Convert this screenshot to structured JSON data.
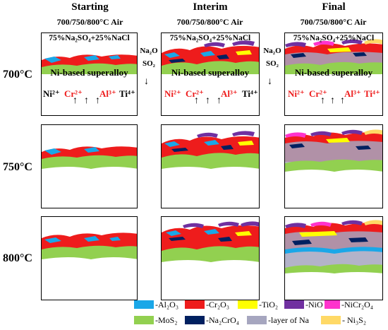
{
  "columns": [
    {
      "title": "Starting",
      "sub": "700/750/800°C Air"
    },
    {
      "title": "Interim",
      "sub": "700/750/800°C Air"
    },
    {
      "title": "Final",
      "sub": "700/750/800°C Air"
    }
  ],
  "rows": [
    "700°C",
    "750°C",
    "800°C"
  ],
  "salt_label": "75%Na₂SO₄+25%NaCl",
  "alloy_label": "Ni-based superalloy",
  "gas_1": {
    "line1": "Na₂O",
    "line2": "SO₂"
  },
  "gas_2": {
    "line1": "Na₂O",
    "line2": "SO₂"
  },
  "ions": {
    "starting": [
      "Ni²⁺",
      "Cr²⁺",
      "Al³⁺",
      "Ti⁴⁺"
    ],
    "interim": [
      "Ni²⁺",
      "Cr²⁺",
      "Al³⁺",
      "Ti⁴⁺"
    ],
    "final": [
      "Ni²⁺",
      "Cr²⁺",
      "Al³⁺",
      "Ti⁴⁺"
    ]
  },
  "arrow_glyph": "↑",
  "down_glyph": "↓",
  "legend": [
    {
      "label": "-Al₂O₃",
      "color": "#1aa7e8"
    },
    {
      "label": "-Cr₂O₃",
      "color": "#ee1c1c"
    },
    {
      "label": "-TiO₂",
      "color": "#ffff00"
    },
    {
      "label": "-NiO",
      "color": "#7030a0"
    },
    {
      "label": "-NiCr₂O₄",
      "color": "#ff33cc"
    },
    {
      "label": "-MoS₂",
      "color": "#92d050"
    },
    {
      "label": "-Na₂CrO₄",
      "color": "#002060"
    },
    {
      "label": "-layer of Na",
      "color": "#a6a6bf"
    },
    {
      "label": "- Ni₃S₂",
      "color": "#ffd966"
    }
  ]
}
